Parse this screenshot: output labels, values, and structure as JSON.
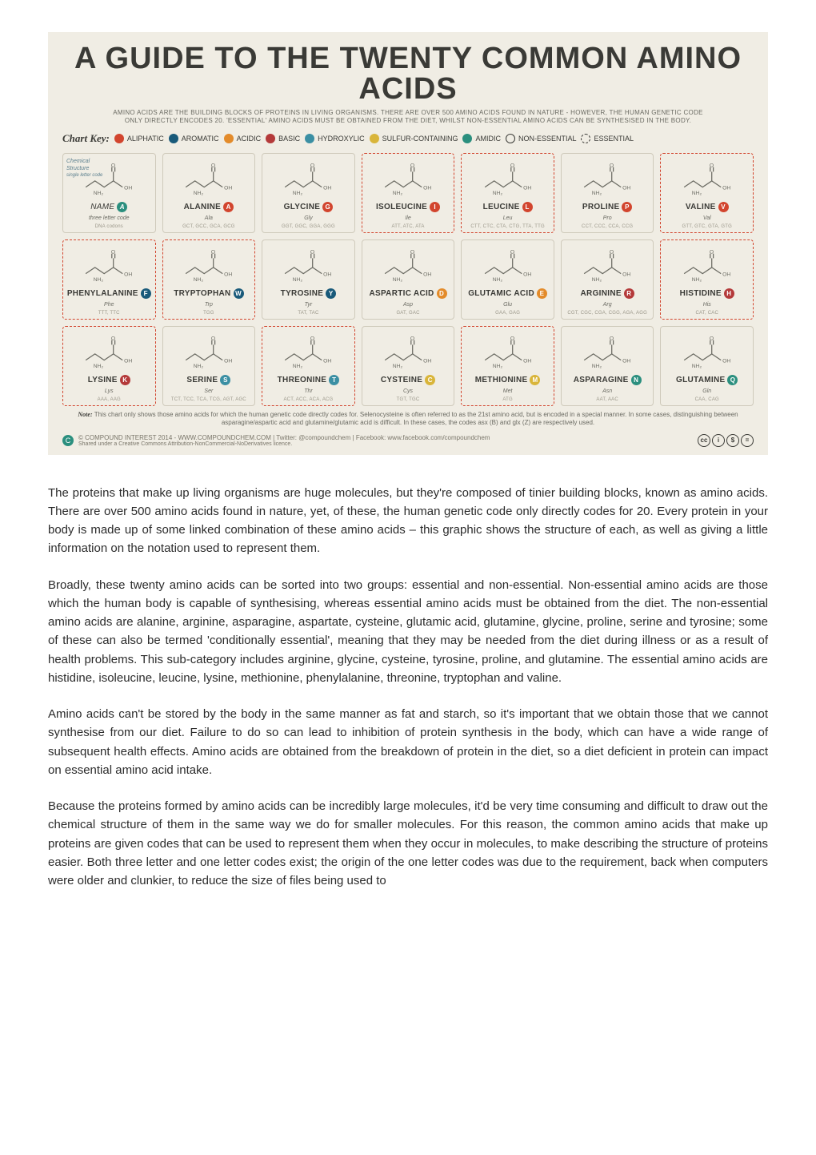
{
  "chart": {
    "background": "#f0ede4",
    "title": "A GUIDE TO THE TWENTY COMMON AMINO ACIDS",
    "subtitle_line1": "AMINO ACIDS ARE THE BUILDING BLOCKS OF PROTEINS IN LIVING ORGANISMS. THERE ARE OVER 500 AMINO ACIDS FOUND IN NATURE - HOWEVER, THE HUMAN GENETIC CODE",
    "subtitle_line2": "ONLY DIRECTLY ENCODES 20. 'ESSENTIAL' AMINO ACIDS MUST BE OBTAINED FROM THE DIET, WHILST NON-ESSENTIAL AMINO ACIDS CAN BE SYNTHESISED IN THE BODY.",
    "key_label": "Chart Key:",
    "categories": {
      "aliphatic": {
        "label": "ALIPHATIC",
        "color": "#d2452e"
      },
      "aromatic": {
        "label": "AROMATIC",
        "color": "#195a7a"
      },
      "acidic": {
        "label": "ACIDIC",
        "color": "#e38b2a"
      },
      "basic": {
        "label": "BASIC",
        "color": "#b43a3a"
      },
      "hydroxylic": {
        "label": "HYDROXYLIC",
        "color": "#3b8fa3"
      },
      "sulfur": {
        "label": "SULFUR-CONTAINING",
        "color": "#d9b53a"
      },
      "amidic": {
        "label": "AMIDIC",
        "color": "#2b8f7e"
      }
    },
    "non_essential_label": "NON-ESSENTIAL",
    "essential_label": "ESSENTIAL",
    "legend_card": {
      "name_label": "NAME",
      "three_label": "three letter code",
      "codons_label": "DNA codons",
      "structure_label": "Chemical Structure",
      "single_letter_label": "single letter code"
    },
    "amino_acids": [
      [
        {
          "is_legend": true
        },
        {
          "name": "ALANINE",
          "letter": "A",
          "three": "Ala",
          "codons": "GCT, GCC, GCA, GCG",
          "cat": "aliphatic",
          "essential": false
        },
        {
          "name": "GLYCINE",
          "letter": "G",
          "three": "Gly",
          "codons": "GGT, GGC, GGA, GGG",
          "cat": "aliphatic",
          "essential": false
        },
        {
          "name": "ISOLEUCINE",
          "letter": "I",
          "three": "Ile",
          "codons": "ATT, ATC, ATA",
          "cat": "aliphatic",
          "essential": true
        },
        {
          "name": "LEUCINE",
          "letter": "L",
          "three": "Leu",
          "codons": "CTT, CTC, CTA, CTG, TTA, TTG",
          "cat": "aliphatic",
          "essential": true
        },
        {
          "name": "PROLINE",
          "letter": "P",
          "three": "Pro",
          "codons": "CCT, CCC, CCA, CCG",
          "cat": "aliphatic",
          "essential": false
        },
        {
          "name": "VALINE",
          "letter": "V",
          "three": "Val",
          "codons": "GTT, GTC, GTA, GTG",
          "cat": "aliphatic",
          "essential": true
        }
      ],
      [
        {
          "name": "PHENYLALANINE",
          "letter": "F",
          "three": "Phe",
          "codons": "TTT, TTC",
          "cat": "aromatic",
          "essential": true
        },
        {
          "name": "TRYPTOPHAN",
          "letter": "W",
          "three": "Trp",
          "codons": "TGG",
          "cat": "aromatic",
          "essential": true
        },
        {
          "name": "TYROSINE",
          "letter": "Y",
          "three": "Tyr",
          "codons": "TAT, TAC",
          "cat": "aromatic",
          "essential": false
        },
        {
          "name": "ASPARTIC ACID",
          "letter": "D",
          "three": "Asp",
          "codons": "GAT, GAC",
          "cat": "acidic",
          "essential": false
        },
        {
          "name": "GLUTAMIC ACID",
          "letter": "E",
          "three": "Glu",
          "codons": "GAA, GAG",
          "cat": "acidic",
          "essential": false
        },
        {
          "name": "ARGININE",
          "letter": "R",
          "three": "Arg",
          "codons": "CGT, CGC, CGA, CGG, AGA, AGG",
          "cat": "basic",
          "essential": false
        },
        {
          "name": "HISTIDINE",
          "letter": "H",
          "three": "His",
          "codons": "CAT, CAC",
          "cat": "basic",
          "essential": true
        }
      ],
      [
        {
          "name": "LYSINE",
          "letter": "K",
          "three": "Lys",
          "codons": "AAA, AAG",
          "cat": "basic",
          "essential": true
        },
        {
          "name": "SERINE",
          "letter": "S",
          "three": "Ser",
          "codons": "TCT, TCC, TCA, TCG, AGT, AGC",
          "cat": "hydroxylic",
          "essential": false
        },
        {
          "name": "THREONINE",
          "letter": "T",
          "three": "Thr",
          "codons": "ACT, ACC, ACA, ACG",
          "cat": "hydroxylic",
          "essential": true
        },
        {
          "name": "CYSTEINE",
          "letter": "C",
          "three": "Cys",
          "codons": "TGT, TGC",
          "cat": "sulfur",
          "essential": false
        },
        {
          "name": "METHIONINE",
          "letter": "M",
          "three": "Met",
          "codons": "ATG",
          "cat": "sulfur",
          "essential": true
        },
        {
          "name": "ASPARAGINE",
          "letter": "N",
          "three": "Asn",
          "codons": "AAT, AAC",
          "cat": "amidic",
          "essential": false
        },
        {
          "name": "GLUTAMINE",
          "letter": "Q",
          "three": "Gln",
          "codons": "CAA, CAG",
          "cat": "amidic",
          "essential": false
        }
      ]
    ],
    "note_label": "Note:",
    "note_text": "This chart only shows those amino acids for which the human genetic code directly codes for. Selenocysteine is often referred to as the 21st amino acid, but is encoded in a special manner. In some cases, distinguishing between asparagine/aspartic acid and glutamine/glutamic acid is difficult. In these cases, the codes asx (B) and glx (Z) are respectively used.",
    "credit": "© COMPOUND INTEREST 2014 - WWW.COMPOUNDCHEM.COM | Twitter: @compoundchem | Facebook: www.facebook.com/compoundchem",
    "credit_sub": "Shared under a Creative Commons Attribution-NonCommercial-NoDerivatives licence.",
    "cc_glyphs": [
      "cc",
      "i",
      "$",
      "="
    ]
  },
  "paragraphs": [
    "The proteins that make up living organisms are huge molecules, but they're composed of tinier building blocks, known as amino acids. There are over 500 amino acids found in nature, yet, of these, the human genetic code only directly codes for 20. Every protein in your body is made up of some linked combination of these amino acids – this graphic shows the structure of each, as well as giving a little information on the notation used to represent them.",
    "Broadly, these twenty amino acids can be sorted into two groups: essential and non-essential. Non-essential amino acids are those which the human body is capable of synthesising, whereas essential amino acids must be obtained from the diet. The non-essential amino acids are alanine, arginine, asparagine, aspartate, cysteine, glutamic acid, glutamine, glycine, proline, serine and tyrosine; some of these can also be termed 'conditionally essential', meaning that they may be needed from the diet during illness or as a result of health problems. This sub-category includes arginine, glycine, cysteine, tyrosine, proline, and glutamine. The essential amino acids are histidine, isoleucine, leucine, lysine, methionine, phenylalanine, threonine, tryptophan and valine.",
    "Amino acids can't be stored by the body in the same manner as fat and starch, so it's important that we obtain those that we cannot synthesise from our diet. Failure to do so can lead to inhibition of protein synthesis in the body, which can have a wide range of subsequent health effects. Amino acids are obtained from the breakdown of protein in the diet, so a diet deficient in protein can impact on essential amino acid intake.",
    "Because the proteins formed by amino acids can be incredibly large molecules, it'd be very time consuming and difficult to draw out the chemical structure of them in the same way we do for smaller molecules. For this reason, the common amino acids that make up proteins are given codes that can be used to represent them when they occur in molecules, to make describing the structure of proteins easier. Both three letter and one letter codes exist; the origin of the one letter codes was due to the requirement, back when computers were older and clunkier, to reduce the size of files being used to"
  ],
  "body_font_size": 15,
  "body_color": "#2b2b2b"
}
